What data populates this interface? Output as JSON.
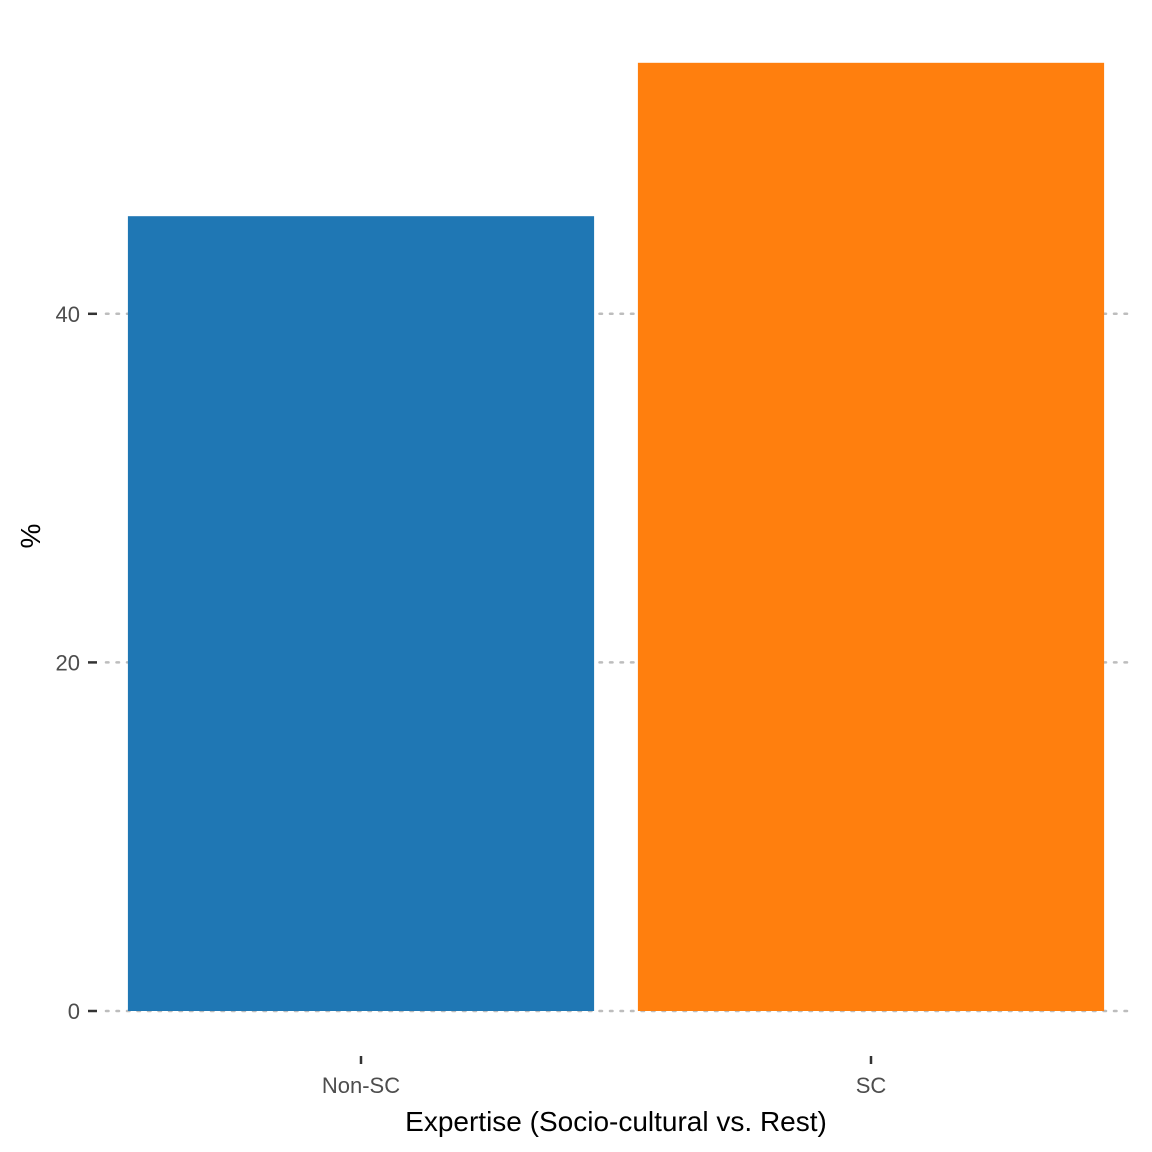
{
  "chart_data": {
    "type": "bar",
    "categories": [
      "Non-SC",
      "SC"
    ],
    "values": [
      45.6,
      54.4
    ],
    "colors": [
      "#1f77b4",
      "#ff7f0e"
    ],
    "xlabel": "Expertise (Socio-cultural vs. Rest)",
    "ylabel": "%",
    "ylim": [
      0,
      57
    ],
    "yticks": [
      0,
      20,
      40
    ],
    "grid": "horizontal-dotted",
    "legend": "none"
  }
}
